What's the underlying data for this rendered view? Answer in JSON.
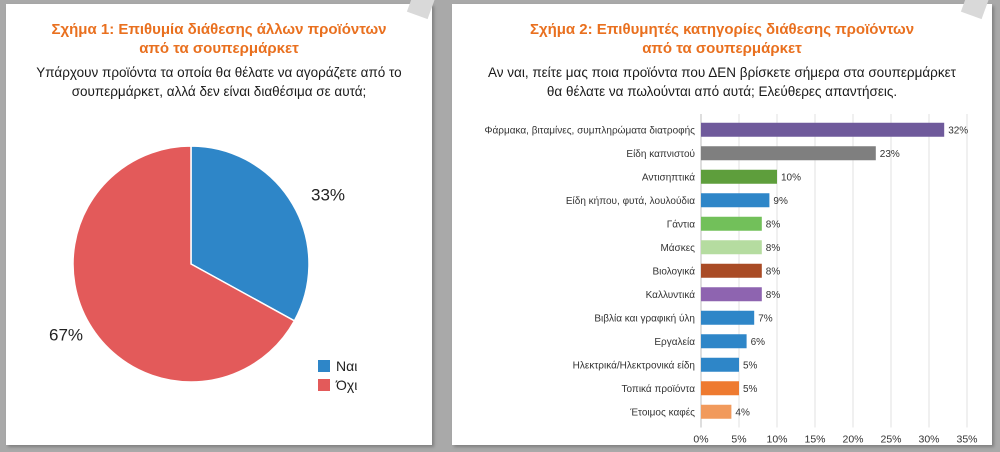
{
  "charts": [
    {
      "title_line1": "Σχήμα 1: Επιθυμία διάθεσης άλλων προϊόντων",
      "title_line2": "από τα σουπερμάρκετ",
      "question_line1": "Υπάρχουν προϊόντα τα οποία θα θέλατε να αγοράζετε από το",
      "question_line2": "σουπερμάρκετ, αλλά δεν είναι διαθέσιμα σε αυτά;"
    },
    {
      "title_line1": "Σχήμα 2: Επιθυμητές κατηγορίες διάθεσης προϊόντων",
      "title_line2": "από τα σουπερμάρκετ",
      "question_line1": "Αν ναι, πείτε μας ποια προϊόντα που ΔΕΝ βρίσκετε σήμερα στα σουπερμάρκετ",
      "question_line2": "θα θέλατε να πωλούνται από αυτά; Ελεύθερες απαντήσεις."
    }
  ],
  "chart_data": [
    {
      "type": "pie",
      "title": "Σχήμα 1: Επιθυμία διάθεσης άλλων προϊόντων από τα σουπερμάρκετ",
      "slices": [
        {
          "label": "Ναι",
          "value": 33,
          "value_label": "33%",
          "color": "#2e86c8"
        },
        {
          "label": "Όχι",
          "value": 67,
          "value_label": "67%",
          "color": "#e35a5a"
        }
      ],
      "legend_placement": "bottom-right"
    },
    {
      "type": "bar",
      "orientation": "horizontal",
      "title": "Σχήμα 2: Επιθυμητές κατηγορίες διάθεσης προϊόντων από τα σουπερμάρκετ",
      "categories": [
        "Φάρμακα, βιταμίνες, συμπληρώματα διατροφής",
        "Είδη καπνιστού",
        "Αντισηπτικά",
        "Είδη κήπου, φυτά, λουλούδια",
        "Γάντια",
        "Μάσκες",
        "Βιολογικά",
        "Καλλυντικά",
        "Βιβλία και γραφική ύλη",
        "Εργαλεία",
        "Ηλεκτρικά/Ηλεκτρονικά είδη",
        "Τοπικά προϊόντα",
        "Έτοιμος καφές"
      ],
      "values": [
        32,
        23,
        10,
        9,
        8,
        8,
        8,
        8,
        7,
        6,
        5,
        5,
        4
      ],
      "value_labels": [
        "32%",
        "23%",
        "10%",
        "9%",
        "8%",
        "8%",
        "8%",
        "8%",
        "7%",
        "6%",
        "5%",
        "5%",
        "4%"
      ],
      "colors": [
        "#6f5a9b",
        "#7f7f7f",
        "#5e9e3c",
        "#2e86c8",
        "#72c05a",
        "#b5dca0",
        "#a94b25",
        "#8e64b0",
        "#2e86c8",
        "#2e86c8",
        "#2e86c8",
        "#ee7a30",
        "#f19a5c"
      ],
      "xlim": [
        0,
        35
      ],
      "xticks": [
        "0%",
        "5%",
        "10%",
        "15%",
        "20%",
        "25%",
        "30%",
        "35%"
      ],
      "grid": true
    }
  ]
}
